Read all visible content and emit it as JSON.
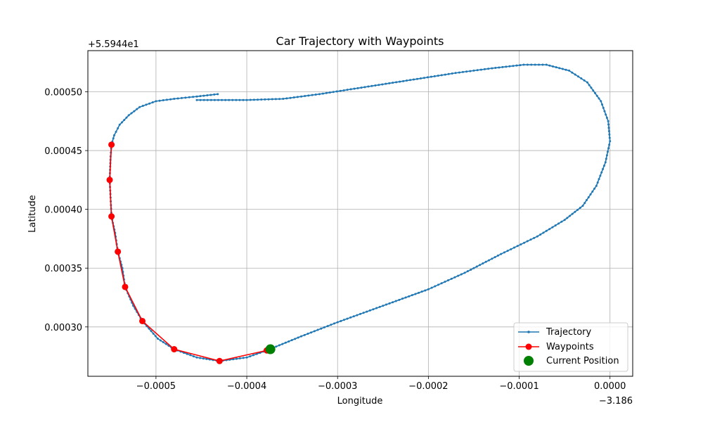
{
  "chart_data": {
    "type": "line",
    "title": "Car Trajectory with Waypoints",
    "xlabel": "Longitude",
    "ylabel": "Latitude",
    "x_offset_label": "−3.186",
    "y_offset_label": "+5.5944e1",
    "xlim": [
      -0.000575,
      2.5e-05
    ],
    "ylim": [
      0.000258,
      0.000535
    ],
    "xticks": [
      -0.0005,
      -0.0004,
      -0.0003,
      -0.0002,
      -0.0001,
      0.0
    ],
    "xtick_labels": [
      "−0.0005",
      "−0.0004",
      "−0.0003",
      "−0.0002",
      "−0.0001",
      "0.0000"
    ],
    "yticks": [
      0.0003,
      0.00035,
      0.0004,
      0.00045,
      0.0005
    ],
    "ytick_labels": [
      "0.00030",
      "0.00035",
      "0.00040",
      "0.00045",
      "0.00050"
    ],
    "grid": true,
    "legend": {
      "position": "lower-right",
      "entries": [
        "Trajectory",
        "Waypoints",
        "Current Position"
      ]
    },
    "series": [
      {
        "name": "Trajectory",
        "color": "#1f77b4",
        "marker": "point",
        "points": [
          [
            -0.000432,
            0.000498
          ],
          [
            -0.000455,
            0.000496
          ],
          [
            -0.00048,
            0.000494
          ],
          [
            -0.0005,
            0.000492
          ],
          [
            -0.000518,
            0.000487
          ],
          [
            -0.00053,
            0.00048
          ],
          [
            -0.00054,
            0.000472
          ],
          [
            -0.000546,
            0.000463
          ],
          [
            -0.000549,
            0.000455
          ],
          [
            -0.00055,
            0.000445
          ],
          [
            -0.000551,
            0.000425
          ],
          [
            -0.00055,
            0.00041
          ],
          [
            -0.000549,
            0.000394
          ],
          [
            -0.000545,
            0.00038
          ],
          [
            -0.000542,
            0.000364
          ],
          [
            -0.000537,
            0.00035
          ],
          [
            -0.000534,
            0.000334
          ],
          [
            -0.000525,
            0.000318
          ],
          [
            -0.000515,
            0.000305
          ],
          [
            -0.000498,
            0.00029
          ],
          [
            -0.00048,
            0.000281
          ],
          [
            -0.000455,
            0.000274
          ],
          [
            -0.00043,
            0.000271
          ],
          [
            -0.0004,
            0.000274
          ],
          [
            -0.000378,
            0.00028
          ],
          [
            -0.00034,
            0.000292
          ],
          [
            -0.0003,
            0.000304
          ],
          [
            -0.00025,
            0.000318
          ],
          [
            -0.0002,
            0.000332
          ],
          [
            -0.00016,
            0.000346
          ],
          [
            -0.00012,
            0.000362
          ],
          [
            -8e-05,
            0.000377
          ],
          [
            -5e-05,
            0.000391
          ],
          [
            -3e-05,
            0.000403
          ],
          [
            -1.5e-05,
            0.00042
          ],
          [
            -5e-06,
            0.00044
          ],
          [
            0.0,
            0.000458
          ],
          [
            -2e-06,
            0.000475
          ],
          [
            -1e-05,
            0.000492
          ],
          [
            -2.5e-05,
            0.000508
          ],
          [
            -4.5e-05,
            0.000518
          ],
          [
            -7e-05,
            0.000523
          ],
          [
            -9.5e-05,
            0.000523
          ],
          [
            -0.00013,
            0.00052
          ],
          [
            -0.00017,
            0.000516
          ],
          [
            -0.00022,
            0.00051
          ],
          [
            -0.00027,
            0.000504
          ],
          [
            -0.00032,
            0.000498
          ],
          [
            -0.00036,
            0.000494
          ],
          [
            -0.0004,
            0.000493
          ],
          [
            -0.000455,
            0.000493
          ]
        ]
      },
      {
        "name": "Waypoints",
        "color": "#ff0000",
        "marker": "circle",
        "points": [
          [
            -0.000549,
            0.000455
          ],
          [
            -0.000551,
            0.000425
          ],
          [
            -0.000549,
            0.000394
          ],
          [
            -0.000542,
            0.000364
          ],
          [
            -0.000534,
            0.000334
          ],
          [
            -0.000515,
            0.000305
          ],
          [
            -0.00048,
            0.000281
          ],
          [
            -0.00043,
            0.000271
          ],
          [
            -0.000378,
            0.00028
          ]
        ]
      },
      {
        "name": "Current Position",
        "color": "#008000",
        "marker": "circle",
        "points": [
          [
            -0.000374,
            0.000281
          ]
        ]
      }
    ]
  }
}
